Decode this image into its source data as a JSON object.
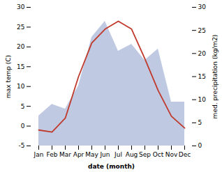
{
  "chart_data": {
    "type": "line",
    "categories": [
      "Jan",
      "Feb",
      "Mar",
      "Apr",
      "May",
      "Jun",
      "Jul",
      "Aug",
      "Sep",
      "Oct",
      "Nov",
      "Dec"
    ],
    "xlabel": "date (month)",
    "ylabel": "max temp (C)",
    "y2label": "med. precipitation (kg/m2)",
    "series": [
      {
        "type": "area",
        "axis": "y2",
        "color": "#aab8d8",
        "values": [
          6.5,
          9.0,
          8.0,
          13.0,
          23.5,
          27.0,
          20.5,
          22.0,
          18.5,
          21.0,
          9.5,
          9.5
        ]
      },
      {
        "type": "line",
        "color": "#c0392b",
        "values": [
          -1.0,
          -1.5,
          2.0,
          12.5,
          21.0,
          24.5,
          26.5,
          24.5,
          17.0,
          9.0,
          2.5,
          -0.5
        ]
      }
    ],
    "ylim": [
      -5,
      30
    ],
    "yticks": [
      -5,
      0,
      5,
      10,
      15,
      20,
      25,
      30
    ],
    "y2lim": [
      0,
      30
    ],
    "y2ticks": [
      0,
      5,
      10,
      15,
      20,
      25,
      30
    ],
    "grid": false
  }
}
